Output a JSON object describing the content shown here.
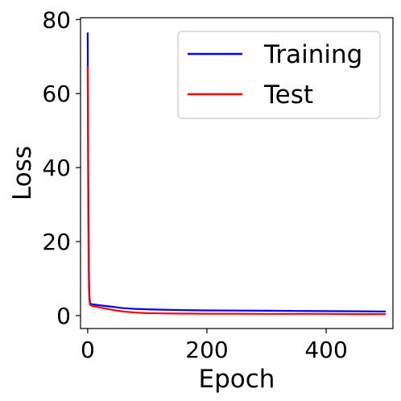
{
  "chart_data": {
    "type": "line",
    "title": "",
    "xlabel": "Epoch",
    "ylabel": "Loss",
    "xlim": [
      -12,
      512
    ],
    "ylim": [
      -3.5,
      80.5
    ],
    "xticks": [
      0,
      200,
      400
    ],
    "yticks": [
      0,
      20,
      40,
      60,
      80
    ],
    "grid": false,
    "legend_position": "top-right",
    "series": [
      {
        "name": "Training",
        "color": "#0000ff",
        "x": [
          0,
          1,
          2,
          3,
          4,
          5,
          6,
          8,
          10,
          15,
          20,
          30,
          40,
          50,
          60,
          80,
          100,
          125,
          150,
          200,
          250,
          300,
          350,
          400,
          450,
          500
        ],
        "y": [
          76.5,
          40,
          12,
          5,
          3.5,
          3.2,
          3.1,
          3.05,
          3.0,
          2.9,
          2.8,
          2.6,
          2.4,
          2.2,
          2.0,
          1.8,
          1.7,
          1.6,
          1.5,
          1.4,
          1.35,
          1.3,
          1.25,
          1.2,
          1.15,
          1.1
        ]
      },
      {
        "name": "Test",
        "color": "#ff0000",
        "x": [
          0,
          1,
          2,
          3,
          4,
          5,
          6,
          8,
          10,
          15,
          20,
          30,
          40,
          50,
          60,
          80,
          100,
          125,
          150,
          200,
          250,
          300,
          350,
          400,
          450,
          500
        ],
        "y": [
          67.5,
          30,
          8,
          4,
          3.0,
          2.8,
          2.7,
          2.6,
          2.5,
          2.4,
          2.2,
          1.9,
          1.6,
          1.3,
          1.1,
          0.8,
          0.65,
          0.6,
          0.55,
          0.5,
          0.5,
          0.45,
          0.45,
          0.45,
          0.4,
          0.4
        ]
      }
    ]
  }
}
